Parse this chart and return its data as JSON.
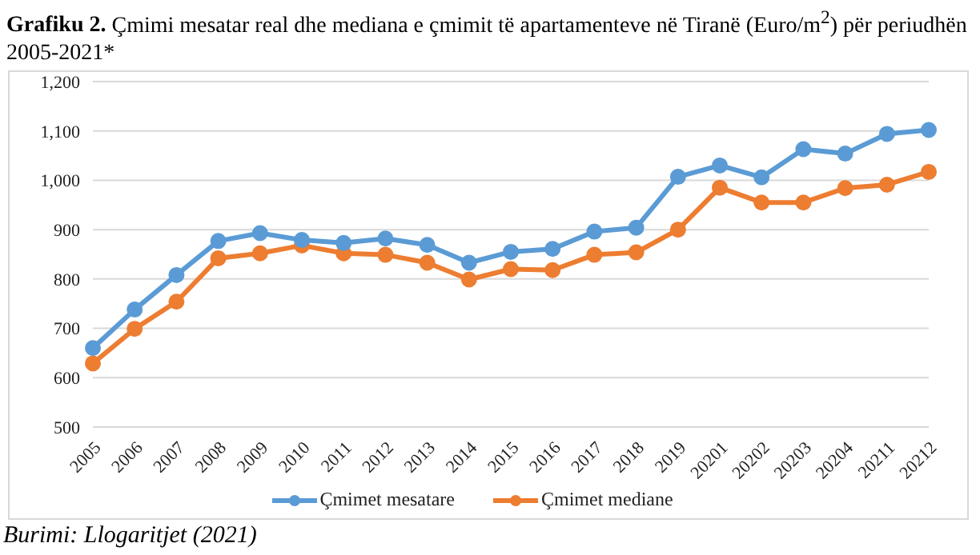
{
  "chart_data": {
    "type": "line",
    "title": "Grafiku 2. Çmimi mesatar real dhe mediana e çmimit të apartamenteve në Tiranë (Euro/m$^{2}$) për periudhën 2005-2021*",
    "categories": [
      "2005",
      "2006",
      "2007",
      "2008",
      "2009",
      "2010",
      "2011",
      "2012",
      "2013",
      "2014",
      "2015",
      "2016",
      "2017",
      "2018",
      "2019",
      "20201",
      "20202",
      "20203",
      "20204",
      "20211",
      "20212"
    ],
    "series": [
      {
        "name": "Çmimet mesatare",
        "color": "#5b9bd5",
        "values": [
          660,
          738,
          808,
          877,
          893,
          879,
          873,
          882,
          869,
          833,
          855,
          861,
          896,
          904,
          1007,
          1030,
          1006,
          1063,
          1054,
          1094,
          1102
        ]
      },
      {
        "name": "Çmimet mediane",
        "color": "#ed7d31",
        "values": [
          629,
          699,
          754,
          842,
          852,
          868,
          852,
          849,
          833,
          799,
          820,
          818,
          849,
          854,
          900,
          985,
          955,
          955,
          984,
          991,
          1017
        ]
      }
    ],
    "ylim": [
      500,
      1200
    ],
    "yticks": [
      500,
      600,
      700,
      800,
      900,
      {
        "value": 1000,
        "label": "1,000"
      },
      {
        "value": 1100,
        "label": "1,100"
      },
      {
        "value": 1200,
        "label": "1,200"
      }
    ],
    "grid": "y",
    "legend": "bottom",
    "marker": "circle",
    "line_style": "solid",
    "annotations": [
      "Burimi: Llogaritjet (2021)"
    ]
  }
}
